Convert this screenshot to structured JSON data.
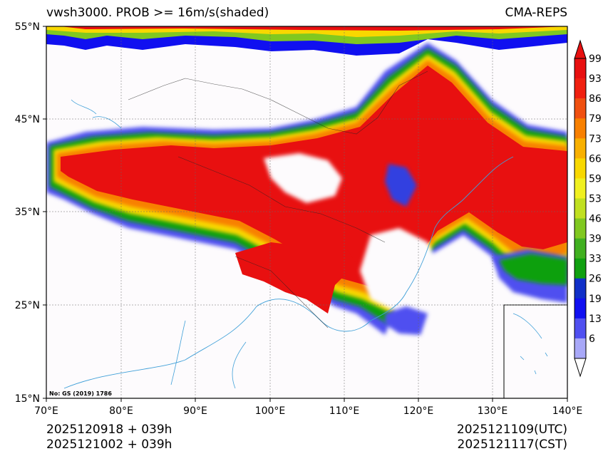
{
  "title": {
    "left": "vwsh3000. PROB >= 16m/s(shaded)",
    "right": "CMA-REPS"
  },
  "axes": {
    "lat_ticks": [
      "55°N",
      "45°N",
      "35°N",
      "25°N",
      "15°N"
    ],
    "lon_ticks": [
      "70°E",
      "80°E",
      "90°E",
      "100°E",
      "110°E",
      "120°E",
      "130°E",
      "140°E"
    ],
    "lat_range": [
      15,
      55
    ],
    "lon_range": [
      70,
      140
    ]
  },
  "colorbar": {
    "levels": [
      "6",
      "13",
      "19",
      "26",
      "33",
      "39",
      "46",
      "53",
      "59",
      "66",
      "73",
      "79",
      "86",
      "93",
      "99"
    ],
    "colors": [
      "#a8a8f8",
      "#5050f0",
      "#1010f0",
      "#1030c8",
      "#10a010",
      "#40b020",
      "#80c820",
      "#c0e020",
      "#f0f020",
      "#f8d800",
      "#f8b000",
      "#f88000",
      "#f05010",
      "#f02010",
      "#e81010"
    ],
    "over_color": "#e81010",
    "under_color": "#ffffff"
  },
  "map_note": "No: GS (2019) 1786",
  "footer": {
    "left_line1": "2025120918  +  039h",
    "left_line2": "2025121002  +  039h",
    "right_line1": "2025121109(UTC)",
    "right_line2": "2025121117(CST)"
  }
}
